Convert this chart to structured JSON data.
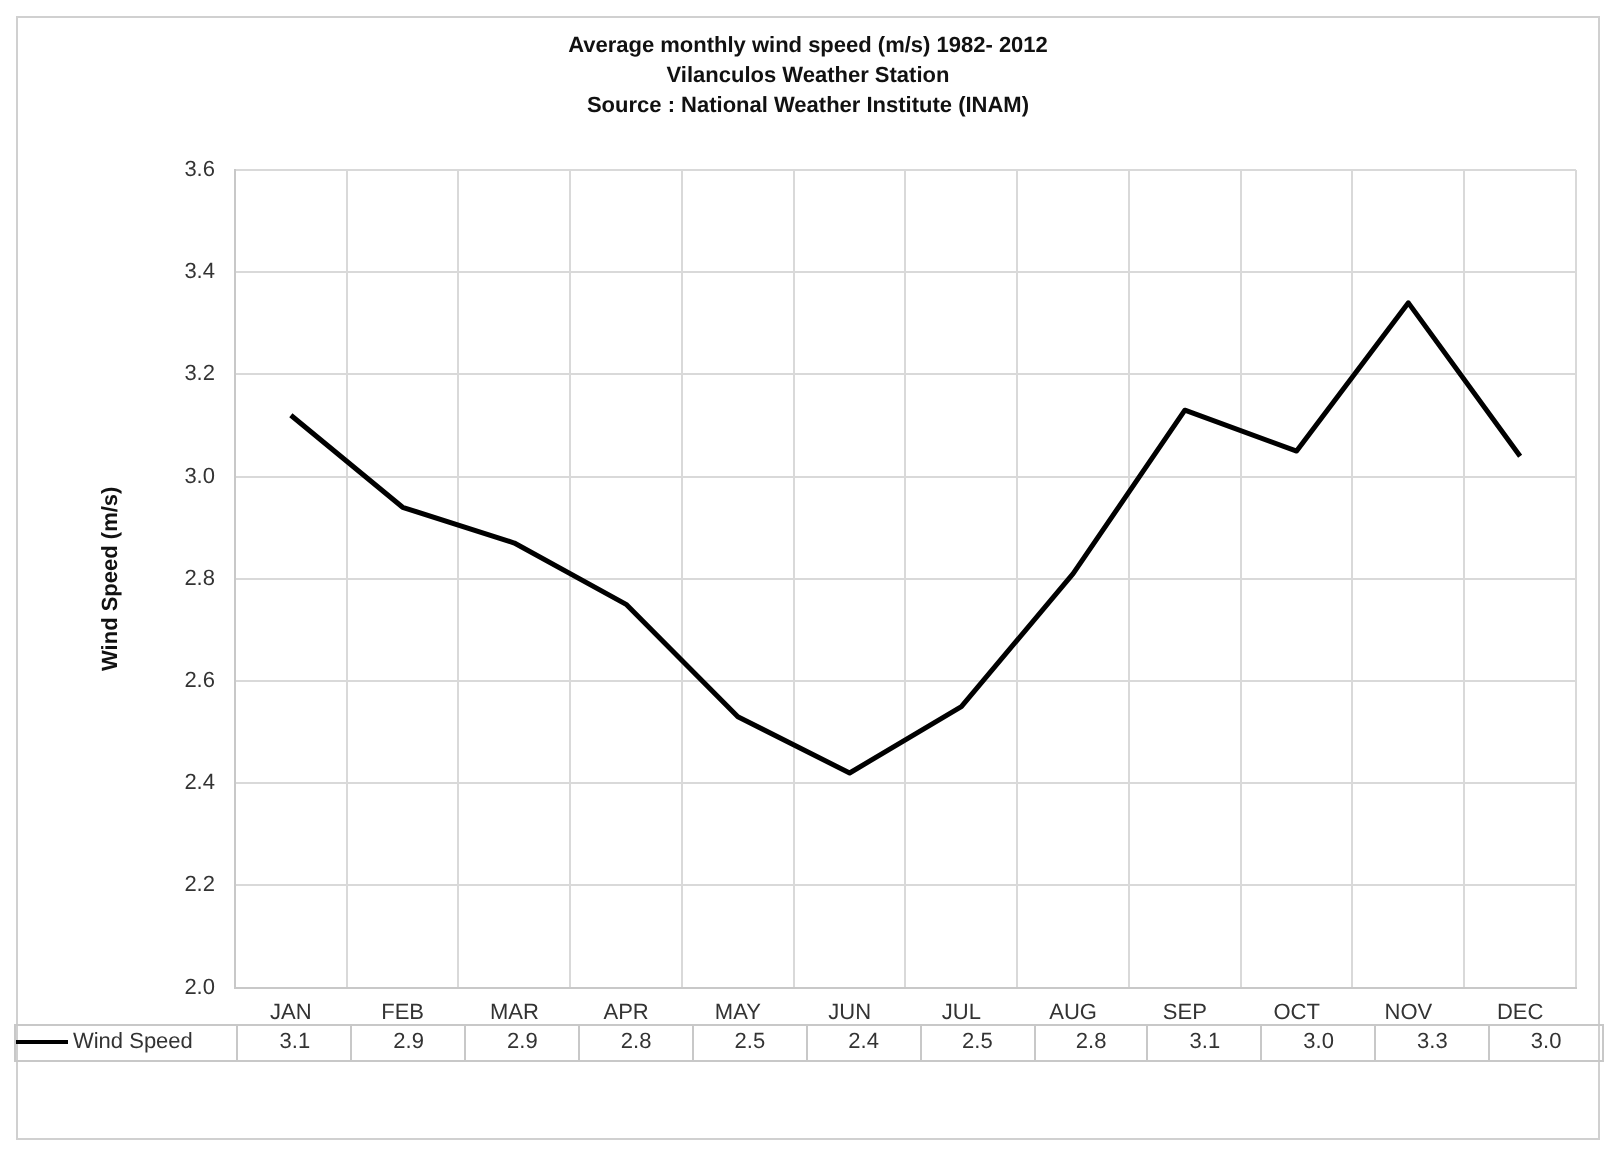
{
  "chart_data": {
    "type": "line",
    "title": "Average monthly wind speed (m/s)  1982- 2012",
    "subtitle": "Vilanculos Weather Station",
    "annotations": [
      "Source : National Weather Institute  (INAM)"
    ],
    "ylabel": "Wind Speed (m/s)",
    "categories": [
      "JAN",
      "FEB",
      "MAR",
      "APR",
      "MAY",
      "JUN",
      "JUL",
      "AUG",
      "SEP",
      "OCT",
      "NOV",
      "DEC"
    ],
    "series": [
      {
        "name": "Wind Speed",
        "color": "#000000",
        "values": [
          3.12,
          2.94,
          2.87,
          2.75,
          2.53,
          2.42,
          2.55,
          2.81,
          3.13,
          3.05,
          3.34,
          3.04
        ],
        "value_labels": [
          "3.1",
          "2.9",
          "2.9",
          "2.8",
          "2.5",
          "2.4",
          "2.5",
          "2.8",
          "3.1",
          "3.0",
          "3.3",
          "3.0"
        ]
      }
    ],
    "ylim": [
      2.0,
      3.6
    ],
    "yticks": [
      {
        "value": 2,
        "label": "2.0"
      },
      2.2,
      2.4,
      2.6,
      2.8,
      {
        "value": 3,
        "label": "3.0"
      },
      3.2,
      3.4,
      3.6
    ],
    "grid": true,
    "legend": "bottom",
    "marker": "none",
    "line_style": "solid"
  }
}
